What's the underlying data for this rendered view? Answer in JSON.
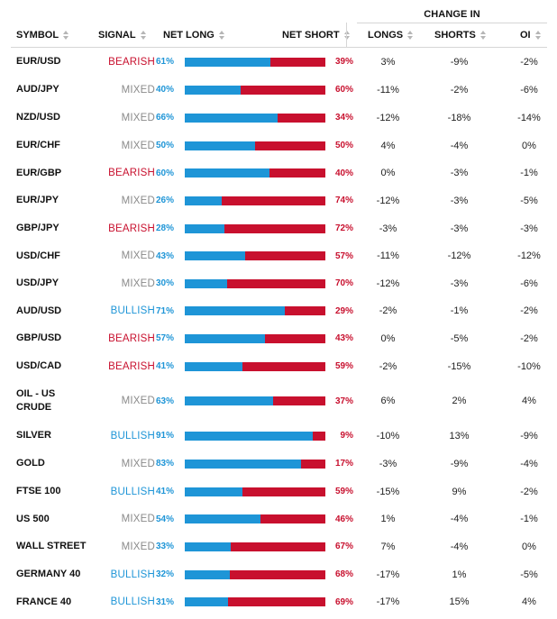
{
  "header": {
    "change_in": "CHANGE IN",
    "symbol": "SYMBOL",
    "signal": "SIGNAL",
    "net_long": "NET LONG",
    "net_short": "NET SHORT",
    "longs": "LONGS",
    "shorts": "SHORTS",
    "oi": "OI"
  },
  "colors": {
    "long": "#1e95d7",
    "short": "#c8102e",
    "mixed": "#8a8a8a"
  },
  "rows": [
    {
      "symbol": "EUR/USD",
      "signal": "BEARISH",
      "net_long": "61%",
      "net_short": "39%",
      "long_frac": 0.61,
      "longs": "3%",
      "shorts": "-9%",
      "oi": "-2%"
    },
    {
      "symbol": "AUD/JPY",
      "signal": "MIXED",
      "net_long": "40%",
      "net_short": "60%",
      "long_frac": 0.4,
      "longs": "-11%",
      "shorts": "-2%",
      "oi": "-6%"
    },
    {
      "symbol": "NZD/USD",
      "signal": "MIXED",
      "net_long": "66%",
      "net_short": "34%",
      "long_frac": 0.66,
      "longs": "-12%",
      "shorts": "-18%",
      "oi": "-14%"
    },
    {
      "symbol": "EUR/CHF",
      "signal": "MIXED",
      "net_long": "50%",
      "net_short": "50%",
      "long_frac": 0.5,
      "longs": "4%",
      "shorts": "-4%",
      "oi": "0%"
    },
    {
      "symbol": "EUR/GBP",
      "signal": "BEARISH",
      "net_long": "60%",
      "net_short": "40%",
      "long_frac": 0.6,
      "longs": "0%",
      "shorts": "-3%",
      "oi": "-1%"
    },
    {
      "symbol": "EUR/JPY",
      "signal": "MIXED",
      "net_long": "26%",
      "net_short": "74%",
      "long_frac": 0.26,
      "longs": "-12%",
      "shorts": "-3%",
      "oi": "-5%"
    },
    {
      "symbol": "GBP/JPY",
      "signal": "BEARISH",
      "net_long": "28%",
      "net_short": "72%",
      "long_frac": 0.28,
      "longs": "-3%",
      "shorts": "-3%",
      "oi": "-3%"
    },
    {
      "symbol": "USD/CHF",
      "signal": "MIXED",
      "net_long": "43%",
      "net_short": "57%",
      "long_frac": 0.43,
      "longs": "-11%",
      "shorts": "-12%",
      "oi": "-12%"
    },
    {
      "symbol": "USD/JPY",
      "signal": "MIXED",
      "net_long": "30%",
      "net_short": "70%",
      "long_frac": 0.3,
      "longs": "-12%",
      "shorts": "-3%",
      "oi": "-6%"
    },
    {
      "symbol": "AUD/USD",
      "signal": "BULLISH",
      "net_long": "71%",
      "net_short": "29%",
      "long_frac": 0.71,
      "longs": "-2%",
      "shorts": "-1%",
      "oi": "-2%"
    },
    {
      "symbol": "GBP/USD",
      "signal": "BEARISH",
      "net_long": "57%",
      "net_short": "43%",
      "long_frac": 0.57,
      "longs": "0%",
      "shorts": "-5%",
      "oi": "-2%"
    },
    {
      "symbol": "USD/CAD",
      "signal": "BEARISH",
      "net_long": "41%",
      "net_short": "59%",
      "long_frac": 0.41,
      "longs": "-2%",
      "shorts": "-15%",
      "oi": "-10%"
    },
    {
      "symbol": "OIL - US CRUDE",
      "signal": "MIXED",
      "net_long": "63%",
      "net_short": "37%",
      "long_frac": 0.63,
      "longs": "6%",
      "shorts": "2%",
      "oi": "4%"
    },
    {
      "symbol": "SILVER",
      "signal": "BULLISH",
      "net_long": "91%",
      "net_short": "9%",
      "long_frac": 0.91,
      "longs": "-10%",
      "shorts": "13%",
      "oi": "-9%"
    },
    {
      "symbol": "GOLD",
      "signal": "MIXED",
      "net_long": "83%",
      "net_short": "17%",
      "long_frac": 0.83,
      "longs": "-3%",
      "shorts": "-9%",
      "oi": "-4%"
    },
    {
      "symbol": "FTSE 100",
      "signal": "BULLISH",
      "net_long": "41%",
      "net_short": "59%",
      "long_frac": 0.41,
      "longs": "-15%",
      "shorts": "9%",
      "oi": "-2%"
    },
    {
      "symbol": "US 500",
      "signal": "MIXED",
      "net_long": "54%",
      "net_short": "46%",
      "long_frac": 0.54,
      "longs": "1%",
      "shorts": "-4%",
      "oi": "-1%"
    },
    {
      "symbol": "WALL STREET",
      "signal": "MIXED",
      "net_long": "33%",
      "net_short": "67%",
      "long_frac": 0.33,
      "longs": "7%",
      "shorts": "-4%",
      "oi": "0%"
    },
    {
      "symbol": "GERMANY 40",
      "signal": "BULLISH",
      "net_long": "32%",
      "net_short": "68%",
      "long_frac": 0.32,
      "longs": "-17%",
      "shorts": "1%",
      "oi": "-5%"
    },
    {
      "symbol": "FRANCE 40",
      "signal": "BULLISH",
      "net_long": "31%",
      "net_short": "69%",
      "long_frac": 0.31,
      "longs": "-17%",
      "shorts": "15%",
      "oi": "4%"
    }
  ]
}
